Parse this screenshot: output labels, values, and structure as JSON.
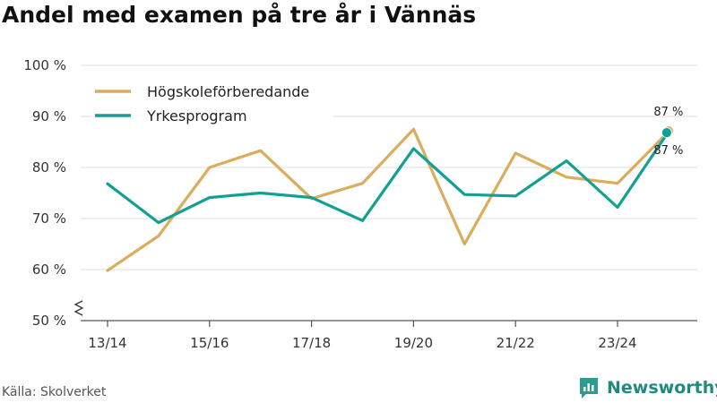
{
  "title": "Andel med examen på tre år i Vännäs",
  "source": "Källa: Skolverket",
  "brand": {
    "name": "Newsworthy",
    "color": "#2a9d8f"
  },
  "chart_data": {
    "type": "line",
    "title": "Andel med examen på tre år i Vännäs",
    "x": [
      "13/14",
      "14/15",
      "15/16",
      "16/17",
      "17/18",
      "18/19",
      "19/20",
      "20/21",
      "21/22",
      "22/23",
      "23/24",
      "24/25"
    ],
    "x_tick_labels": [
      "13/14",
      "15/16",
      "17/18",
      "19/20",
      "21/22",
      "23/24"
    ],
    "ylim": [
      50,
      100
    ],
    "y_ticks": [
      50,
      60,
      70,
      80,
      90,
      100
    ],
    "y_tick_labels": [
      "50 %",
      "60 %",
      "70 %",
      "80 %",
      "90 %",
      "100 %"
    ],
    "y_axis_break": true,
    "grid": true,
    "legend_position": "top-left",
    "series": [
      {
        "name": "Högskoleförberedande",
        "color": "#d9ad5c",
        "values": [
          59.8,
          66.6,
          80.0,
          83.3,
          73.9,
          76.9,
          87.5,
          65.0,
          82.8,
          78.1,
          76.9,
          87.0
        ],
        "end_label": "87 %"
      },
      {
        "name": "Yrkesprogram",
        "color": "#13a094",
        "values": [
          76.8,
          69.2,
          74.1,
          75.0,
          74.1,
          69.6,
          83.7,
          74.7,
          74.4,
          81.3,
          72.2,
          87.0
        ],
        "end_label": "87 %"
      }
    ]
  }
}
